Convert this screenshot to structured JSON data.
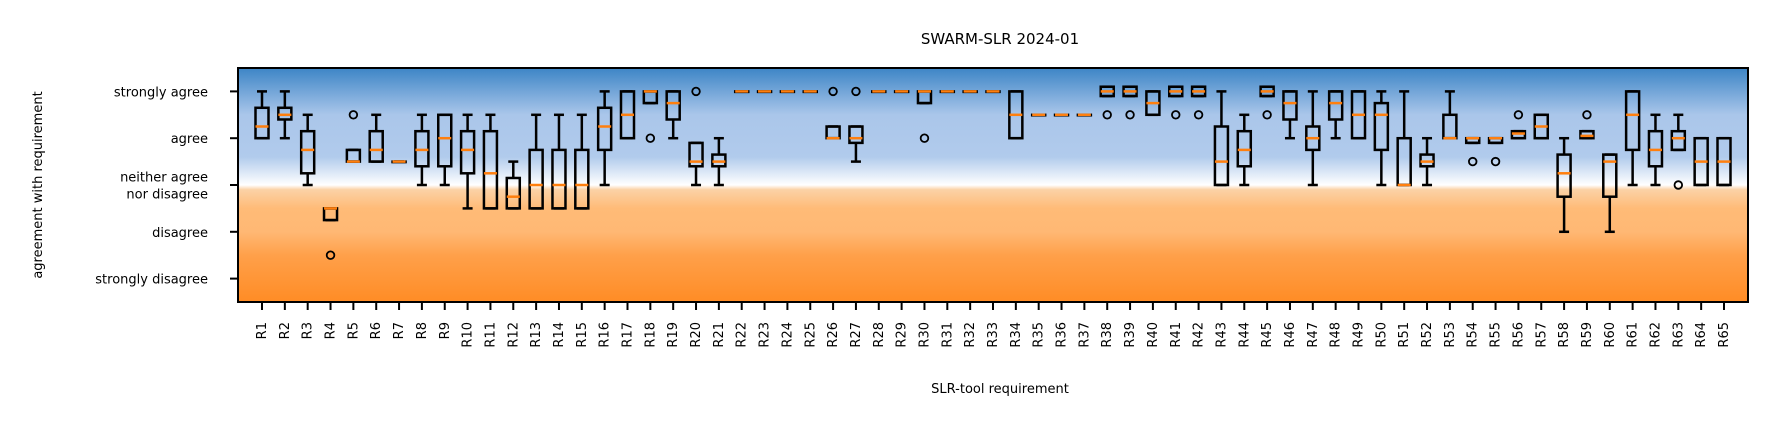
{
  "chart_data": {
    "type": "box",
    "title": "SWARM-SLR 2024-01",
    "xlabel": "SLR-tool requirement",
    "ylabel": "agreement with requirement",
    "ylim": [
      -0.5,
      4.5
    ],
    "y_ticks": [
      {
        "value": 0,
        "label": [
          "strongly disagree"
        ]
      },
      {
        "value": 1,
        "label": [
          "disagree"
        ]
      },
      {
        "value": 2,
        "label": [
          "neither agree",
          "nor disagree"
        ]
      },
      {
        "value": 3,
        "label": [
          "agree"
        ]
      },
      {
        "value": 4,
        "label": [
          "strongly agree"
        ]
      }
    ],
    "background_gradient": {
      "stops": [
        {
          "value": 4.5,
          "color": "#3d85c6"
        },
        {
          "value": 3.5,
          "color": "#aac6ea"
        },
        {
          "value": 2.6,
          "color": "#b1cbec"
        },
        {
          "value": 2.0,
          "color": "#ffffff"
        },
        {
          "value": 1.9,
          "color": "#fbd2a6"
        },
        {
          "value": 1.5,
          "color": "#ffbb77"
        },
        {
          "value": 1.0,
          "color": "#ffb874"
        },
        {
          "value": 0.5,
          "color": "#ffa04a"
        },
        {
          "value": -0.5,
          "color": "#ff8c25"
        }
      ]
    },
    "median_color": "#ff7f0e",
    "box_color": "#000000",
    "boxes": [
      {
        "label": "R1",
        "q1": 3,
        "q3": 3.65,
        "med": 3.25,
        "wlo": 3,
        "whi": 4,
        "fl": []
      },
      {
        "label": "R2",
        "q1": 3.4,
        "q3": 3.65,
        "med": 3.5,
        "wlo": 3,
        "whi": 4,
        "fl": []
      },
      {
        "label": "R3",
        "q1": 2.25,
        "q3": 3.15,
        "med": 2.75,
        "wlo": 2,
        "whi": 3.5,
        "fl": []
      },
      {
        "label": "R4",
        "q1": 1.25,
        "q3": 1.5,
        "med": 1.5,
        "wlo": 1.25,
        "whi": 1.5,
        "fl": [
          0.5
        ]
      },
      {
        "label": "R5",
        "q1": 2.5,
        "q3": 2.75,
        "med": 2.5,
        "wlo": 2.5,
        "whi": 2.75,
        "fl": [
          3.5
        ]
      },
      {
        "label": "R6",
        "q1": 2.5,
        "q3": 3.15,
        "med": 2.75,
        "wlo": 2.5,
        "whi": 3.5,
        "fl": []
      },
      {
        "label": "R7",
        "q1": 2.5,
        "q3": 2.5,
        "med": 2.5,
        "wlo": 2.5,
        "whi": 2.5,
        "fl": []
      },
      {
        "label": "R8",
        "q1": 2.4,
        "q3": 3.15,
        "med": 2.75,
        "wlo": 2,
        "whi": 3.5,
        "fl": []
      },
      {
        "label": "R9",
        "q1": 2.4,
        "q3": 3.5,
        "med": 3,
        "wlo": 2,
        "whi": 3.5,
        "fl": []
      },
      {
        "label": "R10",
        "q1": 2.25,
        "q3": 3.15,
        "med": 2.75,
        "wlo": 1.5,
        "whi": 3.5,
        "fl": []
      },
      {
        "label": "R11",
        "q1": 1.5,
        "q3": 3.15,
        "med": 2.25,
        "wlo": 1.5,
        "whi": 3.5,
        "fl": []
      },
      {
        "label": "R12",
        "q1": 1.5,
        "q3": 2.15,
        "med": 1.75,
        "wlo": 1.5,
        "whi": 2.5,
        "fl": []
      },
      {
        "label": "R13",
        "q1": 1.5,
        "q3": 2.75,
        "med": 2,
        "wlo": 1.5,
        "whi": 3.5,
        "fl": []
      },
      {
        "label": "R14",
        "q1": 1.5,
        "q3": 2.75,
        "med": 2,
        "wlo": 1.5,
        "whi": 3.5,
        "fl": []
      },
      {
        "label": "R15",
        "q1": 1.5,
        "q3": 2.75,
        "med": 2,
        "wlo": 1.5,
        "whi": 3.5,
        "fl": []
      },
      {
        "label": "R16",
        "q1": 2.75,
        "q3": 3.65,
        "med": 3.25,
        "wlo": 2,
        "whi": 4,
        "fl": []
      },
      {
        "label": "R17",
        "q1": 3,
        "q3": 4,
        "med": 3.5,
        "wlo": 3,
        "whi": 4,
        "fl": []
      },
      {
        "label": "R18",
        "q1": 3.75,
        "q3": 4,
        "med": 4,
        "wlo": 3.75,
        "whi": 4,
        "fl": [
          3
        ]
      },
      {
        "label": "R19",
        "q1": 3.4,
        "q3": 4,
        "med": 3.75,
        "wlo": 3,
        "whi": 4,
        "fl": []
      },
      {
        "label": "R20",
        "q1": 2.4,
        "q3": 2.9,
        "med": 2.5,
        "wlo": 2,
        "whi": 2.9,
        "fl": [
          4
        ]
      },
      {
        "label": "R21",
        "q1": 2.4,
        "q3": 2.65,
        "med": 2.5,
        "wlo": 2,
        "whi": 3,
        "fl": []
      },
      {
        "label": "R22",
        "q1": 4,
        "q3": 4,
        "med": 4,
        "wlo": 4,
        "whi": 4,
        "fl": []
      },
      {
        "label": "R23",
        "q1": 4,
        "q3": 4,
        "med": 4,
        "wlo": 4,
        "whi": 4,
        "fl": []
      },
      {
        "label": "R24",
        "q1": 4,
        "q3": 4,
        "med": 4,
        "wlo": 4,
        "whi": 4,
        "fl": []
      },
      {
        "label": "R25",
        "q1": 4,
        "q3": 4,
        "med": 4,
        "wlo": 4,
        "whi": 4,
        "fl": []
      },
      {
        "label": "R26",
        "q1": 3,
        "q3": 3.25,
        "med": 3,
        "wlo": 3,
        "whi": 3.25,
        "fl": [
          4
        ]
      },
      {
        "label": "R27",
        "q1": 2.9,
        "q3": 3.25,
        "med": 3,
        "wlo": 2.5,
        "whi": 3.25,
        "fl": [
          4
        ]
      },
      {
        "label": "R28",
        "q1": 4,
        "q3": 4,
        "med": 4,
        "wlo": 4,
        "whi": 4,
        "fl": []
      },
      {
        "label": "R29",
        "q1": 4,
        "q3": 4,
        "med": 4,
        "wlo": 4,
        "whi": 4,
        "fl": []
      },
      {
        "label": "R30",
        "q1": 3.75,
        "q3": 4,
        "med": 4,
        "wlo": 3.75,
        "whi": 4,
        "fl": [
          3
        ]
      },
      {
        "label": "R31",
        "q1": 4,
        "q3": 4,
        "med": 4,
        "wlo": 4,
        "whi": 4,
        "fl": []
      },
      {
        "label": "R32",
        "q1": 4,
        "q3": 4,
        "med": 4,
        "wlo": 4,
        "whi": 4,
        "fl": []
      },
      {
        "label": "R33",
        "q1": 4,
        "q3": 4,
        "med": 4,
        "wlo": 4,
        "whi": 4,
        "fl": []
      },
      {
        "label": "R34",
        "q1": 3,
        "q3": 4,
        "med": 3.5,
        "wlo": 3,
        "whi": 4,
        "fl": []
      },
      {
        "label": "R35",
        "q1": 3.5,
        "q3": 3.5,
        "med": 3.5,
        "wlo": 3.5,
        "whi": 3.5,
        "fl": []
      },
      {
        "label": "R36",
        "q1": 3.5,
        "q3": 3.5,
        "med": 3.5,
        "wlo": 3.5,
        "whi": 3.5,
        "fl": []
      },
      {
        "label": "R37",
        "q1": 3.5,
        "q3": 3.5,
        "med": 3.5,
        "wlo": 3.5,
        "whi": 3.5,
        "fl": []
      },
      {
        "label": "R38",
        "q1": 3.9,
        "q3": 4.1,
        "med": 4,
        "wlo": 3.9,
        "whi": 4.1,
        "fl": [
          3.5
        ]
      },
      {
        "label": "R39",
        "q1": 3.9,
        "q3": 4.1,
        "med": 4,
        "wlo": 3.9,
        "whi": 4.1,
        "fl": [
          3.5
        ]
      },
      {
        "label": "R40",
        "q1": 3.5,
        "q3": 4,
        "med": 3.75,
        "wlo": 3.5,
        "whi": 4,
        "fl": []
      },
      {
        "label": "R41",
        "q1": 3.9,
        "q3": 4.1,
        "med": 4,
        "wlo": 3.9,
        "whi": 4.1,
        "fl": [
          3.5
        ]
      },
      {
        "label": "R42",
        "q1": 3.9,
        "q3": 4.1,
        "med": 4,
        "wlo": 3.9,
        "whi": 4.1,
        "fl": [
          3.5
        ]
      },
      {
        "label": "R43",
        "q1": 2,
        "q3": 3.25,
        "med": 2.5,
        "wlo": 2,
        "whi": 4,
        "fl": []
      },
      {
        "label": "R44",
        "q1": 2.4,
        "q3": 3.15,
        "med": 2.75,
        "wlo": 2,
        "whi": 3.5,
        "fl": []
      },
      {
        "label": "R45",
        "q1": 3.9,
        "q3": 4.1,
        "med": 4,
        "wlo": 3.9,
        "whi": 4.1,
        "fl": [
          3.5
        ]
      },
      {
        "label": "R46",
        "q1": 3.4,
        "q3": 4,
        "med": 3.75,
        "wlo": 3,
        "whi": 4,
        "fl": []
      },
      {
        "label": "R47",
        "q1": 2.75,
        "q3": 3.25,
        "med": 3,
        "wlo": 2,
        "whi": 4,
        "fl": []
      },
      {
        "label": "R48",
        "q1": 3.4,
        "q3": 4,
        "med": 3.75,
        "wlo": 3,
        "whi": 4,
        "fl": []
      },
      {
        "label": "R49",
        "q1": 3,
        "q3": 4,
        "med": 3.5,
        "wlo": 3,
        "whi": 4,
        "fl": []
      },
      {
        "label": "R50",
        "q1": 2.75,
        "q3": 3.75,
        "med": 3.5,
        "wlo": 2,
        "whi": 4,
        "fl": []
      },
      {
        "label": "R51",
        "q1": 2,
        "q3": 3,
        "med": 2,
        "wlo": 2,
        "whi": 4,
        "fl": []
      },
      {
        "label": "R52",
        "q1": 2.4,
        "q3": 2.65,
        "med": 2.5,
        "wlo": 2,
        "whi": 3,
        "fl": []
      },
      {
        "label": "R53",
        "q1": 3,
        "q3": 3.5,
        "med": 3,
        "wlo": 3,
        "whi": 4,
        "fl": []
      },
      {
        "label": "R54",
        "q1": 2.9,
        "q3": 3,
        "med": 3,
        "wlo": 2.9,
        "whi": 3,
        "fl": [
          2.5
        ]
      },
      {
        "label": "R55",
        "q1": 2.9,
        "q3": 3,
        "med": 3,
        "wlo": 2.9,
        "whi": 3,
        "fl": [
          2.5
        ]
      },
      {
        "label": "R56",
        "q1": 3,
        "q3": 3.15,
        "med": 3.1,
        "wlo": 3,
        "whi": 3.15,
        "fl": [
          3.5
        ]
      },
      {
        "label": "R57",
        "q1": 3,
        "q3": 3.5,
        "med": 3.25,
        "wlo": 3,
        "whi": 3.5,
        "fl": []
      },
      {
        "label": "R58",
        "q1": 1.75,
        "q3": 2.65,
        "med": 2.25,
        "wlo": 1,
        "whi": 3,
        "fl": []
      },
      {
        "label": "R59",
        "q1": 3,
        "q3": 3.15,
        "med": 3.05,
        "wlo": 3,
        "whi": 3.15,
        "fl": [
          3.5
        ]
      },
      {
        "label": "R60",
        "q1": 1.75,
        "q3": 2.65,
        "med": 2.5,
        "wlo": 1,
        "whi": 2.65,
        "fl": []
      },
      {
        "label": "R61",
        "q1": 2.75,
        "q3": 4,
        "med": 3.5,
        "wlo": 2,
        "whi": 4,
        "fl": []
      },
      {
        "label": "R62",
        "q1": 2.4,
        "q3": 3.15,
        "med": 2.75,
        "wlo": 2,
        "whi": 3.5,
        "fl": []
      },
      {
        "label": "R63",
        "q1": 2.75,
        "q3": 3.15,
        "med": 3,
        "wlo": 2.75,
        "whi": 3.5,
        "fl": [
          2
        ]
      },
      {
        "label": "R64",
        "q1": 2,
        "q3": 3,
        "med": 2.5,
        "wlo": 2,
        "whi": 3,
        "fl": []
      },
      {
        "label": "R65",
        "q1": 2,
        "q3": 3,
        "med": 2.5,
        "wlo": 2,
        "whi": 3,
        "fl": []
      }
    ]
  }
}
